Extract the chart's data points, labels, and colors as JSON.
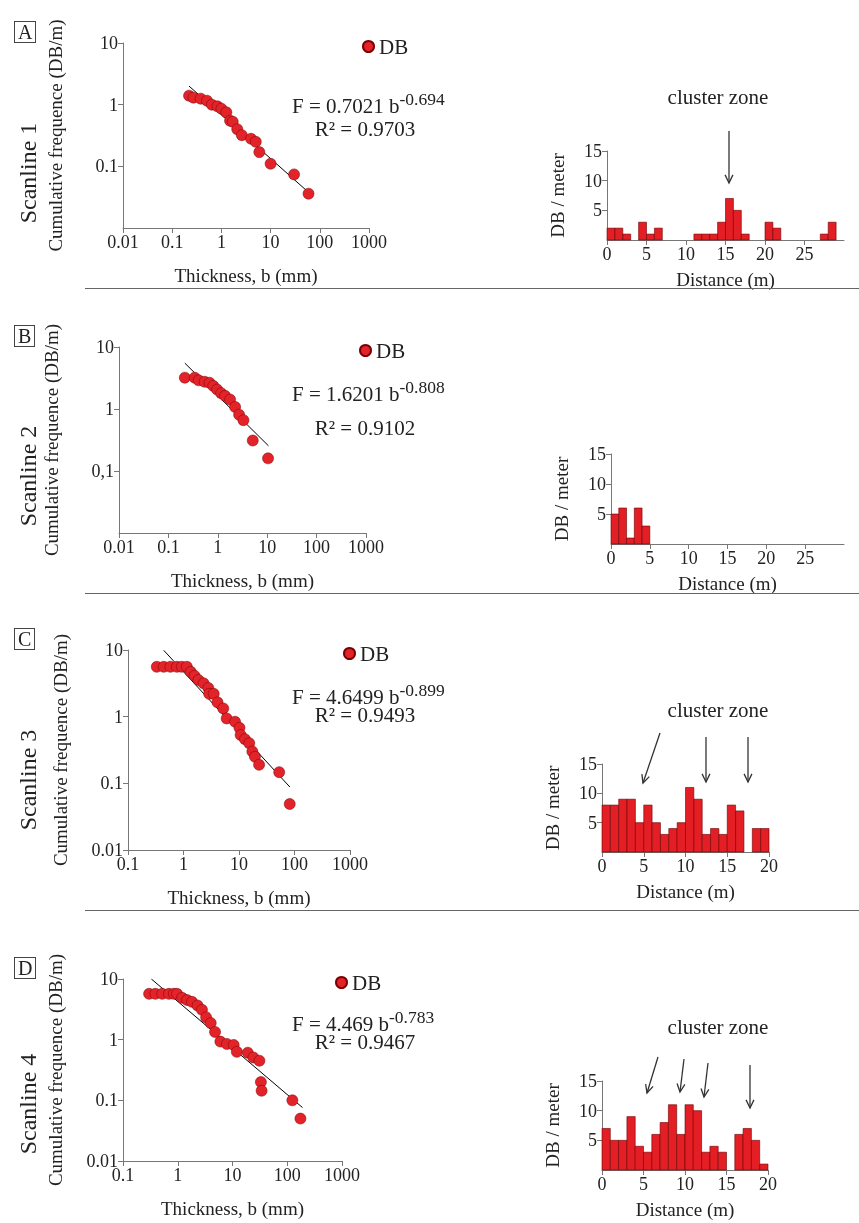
{
  "chart_data": [
    {
      "type": "scatter",
      "xlabel": "Thickness, b (mm)",
      "ylabel": "Cumulative frequence (DB/m)",
      "annotations": [
        "A",
        "Scanline 1",
        "F = 0.7021 b$^{-0.694}$",
        "R² = 0.9703"
      ],
      "log": "xy",
      "xlim": [
        0.01,
        1000
      ],
      "ylim": [
        0.01,
        10
      ],
      "xticks": [
        0.01,
        0.1,
        1,
        10,
        100,
        1000
      ],
      "yticks": [
        0.1,
        1,
        10
      ],
      "legend": "top right",
      "series": [
        {
          "name": "DB",
          "marker": "circle",
          "color": "#e3232a",
          "x": [
            0.22,
            0.27,
            0.38,
            0.51,
            0.64,
            0.83,
            1.0,
            1.26,
            1.5,
            1.7,
            2.1,
            2.6,
            4.0,
            5.0,
            5.9,
            10,
            30,
            59
          ],
          "values": [
            1.4,
            1.3,
            1.25,
            1.16,
            1.0,
            0.94,
            0.86,
            0.75,
            0.55,
            0.53,
            0.4,
            0.32,
            0.28,
            0.25,
            0.17,
            0.11,
            0.074,
            0.036
          ]
        },
        {
          "type": "line",
          "marker": "none",
          "color": "#000000",
          "x": [
            0.22,
            66
          ],
          "values": [
            2.0,
            0.035
          ]
        }
      ]
    },
    {
      "type": "histogram",
      "xlabel": "Distance (m)",
      "ylabel": "DB / meter",
      "annotations": [
        "cluster zone"
      ],
      "color": "#e31e24",
      "bins": [
        0,
        1,
        2,
        3,
        4,
        5,
        6,
        7,
        8,
        9,
        10,
        11,
        12,
        13,
        14,
        15,
        16,
        17,
        18,
        19,
        20,
        21,
        22,
        23,
        24,
        25,
        26,
        27,
        28,
        29,
        30
      ],
      "values": [
        2,
        2,
        1,
        0,
        3,
        1,
        2,
        0,
        0,
        0,
        0,
        1,
        1,
        1,
        3,
        7,
        5,
        1,
        0,
        0,
        3,
        2,
        0,
        0,
        0,
        0,
        0,
        1,
        3,
        0
      ],
      "xlim": [
        0,
        30
      ],
      "xticks": [
        0,
        5,
        10,
        15,
        20,
        25
      ],
      "ylim": [
        0,
        15
      ],
      "yticks": [
        5,
        10,
        15
      ]
    },
    {
      "type": "scatter",
      "xlabel": "Thickness, b (mm)",
      "ylabel": "Cumulative frequence (DB/m)",
      "annotations": [
        "B",
        "Scanline 2",
        "F = 1.6201 b$^{-0.808}$",
        "R² = 0.9102"
      ],
      "log": "xy",
      "xlim": [
        0.01,
        1000
      ],
      "ylim": [
        0.01,
        10
      ],
      "xticks": [
        0.01,
        0.1,
        1,
        10,
        100,
        1000
      ],
      "yticks": [
        {
          "value": 0.1,
          "label": "0,1"
        },
        1,
        10
      ],
      "legend": "top right",
      "series": [
        {
          "name": "DB",
          "marker": "circle",
          "color": "#e3232a",
          "x": [
            0.215,
            0.34,
            0.41,
            0.54,
            0.68,
            0.81,
            0.97,
            1.17,
            1.4,
            1.77,
            2.24,
            2.7,
            3.3,
            5.1,
            10.4
          ],
          "values": [
            3.2,
            3.2,
            2.9,
            2.75,
            2.65,
            2.36,
            2.06,
            1.8,
            1.63,
            1.42,
            1.08,
            0.81,
            0.66,
            0.31,
            0.16
          ]
        },
        {
          "type": "line",
          "marker": "none",
          "color": "#000000",
          "x": [
            0.215,
            10.6
          ],
          "values": [
            5.5,
            0.255
          ]
        }
      ]
    },
    {
      "type": "histogram",
      "xlabel": "Distance (m)",
      "ylabel": "DB / meter",
      "color": "#e31e24",
      "bins": [
        0,
        1,
        2,
        3,
        4,
        5,
        6,
        7,
        8,
        9,
        10,
        11,
        12,
        13,
        14,
        15,
        16,
        17,
        18,
        19,
        20,
        21,
        22,
        23,
        24,
        25,
        26,
        27,
        28,
        29,
        30
      ],
      "values": [
        5,
        6,
        1,
        6,
        3,
        0,
        0,
        0,
        0,
        0,
        0,
        0,
        0,
        0,
        0,
        0,
        0,
        0,
        0,
        0,
        0,
        0,
        0,
        0,
        0,
        0,
        0,
        0,
        0,
        0
      ],
      "xlim": [
        0,
        30
      ],
      "xticks": [
        0,
        5,
        10,
        15,
        20,
        25
      ],
      "ylim": [
        0,
        15
      ],
      "yticks": [
        5,
        10,
        15
      ]
    },
    {
      "type": "scatter",
      "xlabel": "Thickness, b (mm)",
      "ylabel": "Cumulative frequence (DB/m)",
      "annotations": [
        "C",
        "Scanline 3",
        "F = 4.6499 b$^{-0.899}$",
        "R² = 0.9493"
      ],
      "log": "xy",
      "xlim": [
        0.1,
        1000
      ],
      "ylim": [
        0.01,
        10
      ],
      "xticks": [
        0.1,
        1,
        10,
        100,
        1000
      ],
      "yticks": [
        0.01,
        0.1,
        1,
        10
      ],
      "legend": "top right",
      "series": [
        {
          "name": "DB",
          "marker": "circle",
          "color": "#e3232a",
          "x": [
            0.33,
            0.44,
            0.58,
            0.76,
            0.93,
            1.15,
            1.35,
            1.58,
            1.86,
            2.3,
            2.8,
            2.9,
            3.5,
            4.1,
            5.2,
            6.0,
            8.5,
            10.2,
            10.7,
            12.8,
            15.3,
            17.4,
            19.4,
            23,
            53,
            82
          ],
          "values": [
            5.6,
            5.6,
            5.6,
            5.6,
            5.6,
            5.6,
            4.7,
            4.1,
            3.55,
            3.16,
            2.7,
            2.2,
            2.2,
            1.64,
            1.33,
            0.94,
            0.84,
            0.68,
            0.53,
            0.46,
            0.4,
            0.3,
            0.25,
            0.19,
            0.147,
            0.049
          ]
        },
        {
          "type": "line",
          "marker": "none",
          "color": "#000000",
          "x": [
            0.44,
            82.6
          ],
          "values": [
            9.9,
            0.088
          ]
        }
      ]
    },
    {
      "type": "histogram",
      "xlabel": "Distance (m)",
      "ylabel": "DB / meter",
      "annotations": [
        "cluster zone"
      ],
      "color": "#e31e24",
      "bins": [
        0,
        1,
        2,
        3,
        4,
        5,
        6,
        7,
        8,
        9,
        10,
        11,
        12,
        13,
        14,
        15,
        16,
        17,
        18,
        19,
        20
      ],
      "values": [
        8,
        8,
        9,
        9,
        5,
        8,
        5,
        3,
        4,
        5,
        11,
        9,
        3,
        4,
        3,
        8,
        7,
        0,
        4,
        4
      ],
      "xlim": [
        0,
        20
      ],
      "xticks": [
        0,
        5,
        10,
        15,
        20
      ],
      "ylim": [
        0,
        15
      ],
      "yticks": [
        5,
        10,
        15
      ]
    },
    {
      "type": "scatter",
      "xlabel": "Thickness, b (mm)",
      "ylabel": "Cumulative frequence (DB/m)",
      "annotations": [
        "D",
        "Scanline 4",
        "F = 4.469 b$^{-0.783}$",
        "R² = 0.9467"
      ],
      "log": "xy",
      "xlim": [
        0.1,
        1000
      ],
      "ylim": [
        0.01,
        10
      ],
      "xticks": [
        0.1,
        1,
        10,
        100,
        1000
      ],
      "yticks": [
        0.01,
        0.1,
        1,
        10
      ],
      "legend": "top right",
      "series": [
        {
          "name": "DB",
          "marker": "circle",
          "color": "#e3232a",
          "x": [
            0.3,
            0.39,
            0.52,
            0.69,
            0.85,
            0.97,
            1.2,
            1.48,
            1.82,
            2.3,
            2.77,
            3.3,
            4.0,
            4.8,
            6.0,
            7.9,
            10.5,
            12,
            19,
            24,
            31,
            33,
            34,
            124,
            174
          ],
          "values": [
            5.7,
            5.7,
            5.7,
            5.7,
            5.7,
            5.7,
            4.9,
            4.5,
            4.2,
            3.66,
            3.1,
            2.33,
            1.88,
            1.34,
            0.93,
            0.85,
            0.82,
            0.63,
            0.61,
            0.51,
            0.45,
            0.2,
            0.144,
            0.1,
            0.05
          ]
        },
        {
          "type": "line",
          "marker": "none",
          "color": "#000000",
          "x": [
            0.33,
            190
          ],
          "values": [
            10,
            0.076
          ]
        }
      ]
    },
    {
      "type": "histogram",
      "xlabel": "Distance (m)",
      "ylabel": "DB / meter",
      "annotations": [
        "cluster zone"
      ],
      "color": "#e31e24",
      "bins": [
        0,
        1,
        2,
        3,
        4,
        5,
        6,
        7,
        8,
        9,
        10,
        11,
        12,
        13,
        14,
        15,
        16,
        17,
        18,
        19,
        20
      ],
      "values": [
        7,
        5,
        5,
        9,
        4,
        3,
        6,
        8,
        11,
        6,
        11,
        10,
        3,
        4,
        3,
        0,
        6,
        7,
        5,
        1
      ],
      "xlim": [
        0,
        20
      ],
      "xticks": [
        0,
        5,
        10,
        15,
        20
      ],
      "ylim": [
        0,
        15
      ],
      "yticks": [
        5,
        10,
        15
      ]
    }
  ]
}
